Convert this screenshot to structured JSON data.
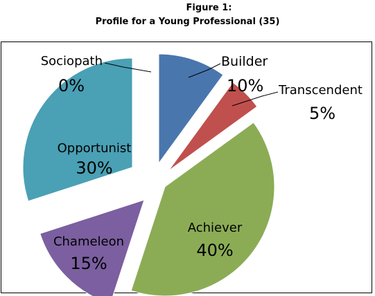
{
  "figure_label": "Figure 1:",
  "title": "Profile for a Young Professional (35)",
  "chart_data": {
    "type": "pie",
    "title": "Profile for a Young Professional (35)",
    "exploded": true,
    "slices": [
      {
        "name": "Builder",
        "value": 10,
        "label": "10%",
        "color": "#4a76ae"
      },
      {
        "name": "Transcendent",
        "value": 5,
        "label": "5%",
        "color": "#c0504d"
      },
      {
        "name": "Achiever",
        "value": 40,
        "label": "40%",
        "color": "#8bac55"
      },
      {
        "name": "Chameleon",
        "value": 15,
        "label": "15%",
        "color": "#7b5fa0"
      },
      {
        "name": "Opportunist",
        "value": 30,
        "label": "30%",
        "color": "#4aa0b4"
      },
      {
        "name": "Sociopath",
        "value": 0,
        "label": "0%",
        "color": "#f79646"
      }
    ]
  }
}
